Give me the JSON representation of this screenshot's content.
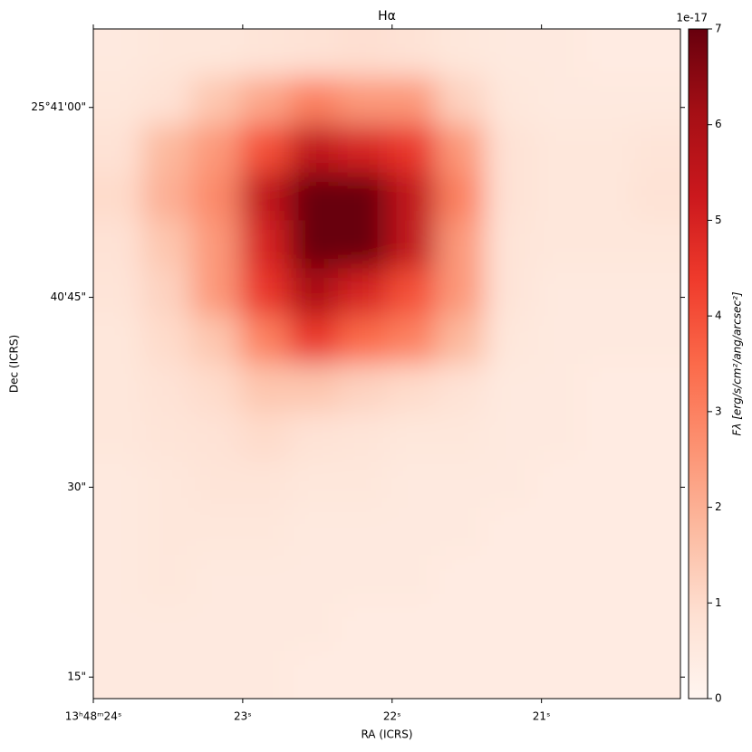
{
  "chart_data": {
    "type": "heatmap",
    "title": "Hα",
    "x_label": "RA (ICRS)",
    "y_label": "Dec (ICRS)",
    "xlim": [
      24,
      20.07
    ],
    "xticks": [
      {
        "value": 24,
        "label": "13ʰ48ᵐ24ˢ"
      },
      {
        "value": 23,
        "label": "23ˢ"
      },
      {
        "value": 22,
        "label": "22ˢ"
      },
      {
        "value": 21,
        "label": "21ˢ"
      }
    ],
    "ylim": [
      13.3,
      66.2
    ],
    "yticks": [
      {
        "value": 60,
        "label": "25°41'00\""
      },
      {
        "value": 45,
        "label": "40'45\""
      },
      {
        "value": 30,
        "label": "30\""
      },
      {
        "value": 15,
        "label": "15\""
      }
    ],
    "colors": [
      "#fff5f0",
      "#fee0d2",
      "#fcbba1",
      "#fc9272",
      "#fb6a4a",
      "#ef3b2c",
      "#cb181d",
      "#a50f15",
      "#67000d"
    ],
    "values": [
      [
        0.5,
        0.6,
        0.6,
        0.7,
        0.8,
        0.9,
        0.8,
        0.6,
        0.5,
        0.5,
        0.4,
        0.4
      ],
      [
        0.6,
        0.8,
        1.5,
        2.2,
        3,
        2.5,
        2.5,
        1.2,
        0.6,
        0.5,
        0.5,
        0.5
      ],
      [
        0.8,
        1.8,
        2.5,
        4,
        5.5,
        5,
        4.5,
        2.5,
        0.8,
        0.6,
        0.6,
        0.7
      ],
      [
        1,
        2,
        2.8,
        5.5,
        7,
        7,
        5.5,
        3,
        0.8,
        0.6,
        0.6,
        0.8
      ],
      [
        0.8,
        1.5,
        2.5,
        5,
        7,
        7,
        5.5,
        2.5,
        0.7,
        0.6,
        0.6,
        0.6
      ],
      [
        0.7,
        1.2,
        2.5,
        4.5,
        6,
        5,
        4,
        2.5,
        0.7,
        0.5,
        0.5,
        0.5
      ],
      [
        0.6,
        1,
        1.5,
        3,
        4.5,
        3.5,
        3,
        1.8,
        0.6,
        0.5,
        0.5,
        0.5
      ],
      [
        0.6,
        0.8,
        1,
        1.5,
        1.5,
        1.2,
        1,
        0.8,
        0.5,
        0.5,
        0.4,
        0.4
      ],
      [
        0.6,
        0.7,
        0.8,
        1,
        0.8,
        0.7,
        0.6,
        0.6,
        0.5,
        0.5,
        0.4,
        0.4
      ],
      [
        0.5,
        0.6,
        0.7,
        0.7,
        0.6,
        0.6,
        0.5,
        0.5,
        0.5,
        0.4,
        0.4,
        0.4
      ],
      [
        0.5,
        0.6,
        0.6,
        0.6,
        0.5,
        0.5,
        0.5,
        0.5,
        0.4,
        0.4,
        0.4,
        0.4
      ],
      [
        0.5,
        0.6,
        0.5,
        0.5,
        0.5,
        0.5,
        0.5,
        0.4,
        0.4,
        0.4,
        0.4,
        0.4
      ],
      [
        0.5,
        0.5,
        0.5,
        0.5,
        0.5,
        0.4,
        0.4,
        0.4,
        0.4,
        0.4,
        0.4,
        0.4
      ],
      [
        0.5,
        0.5,
        0.5,
        0.5,
        0.4,
        0.4,
        0.4,
        0.4,
        0.4,
        0.4,
        0.4,
        0.4
      ]
    ],
    "colorbar": {
      "lim": [
        0,
        7
      ],
      "ticks": [
        0,
        1,
        2,
        3,
        4,
        5,
        6,
        7
      ],
      "offset": "1e-17",
      "label": "Fλ [erg/s/cm²/ang/arcsec²]"
    }
  }
}
